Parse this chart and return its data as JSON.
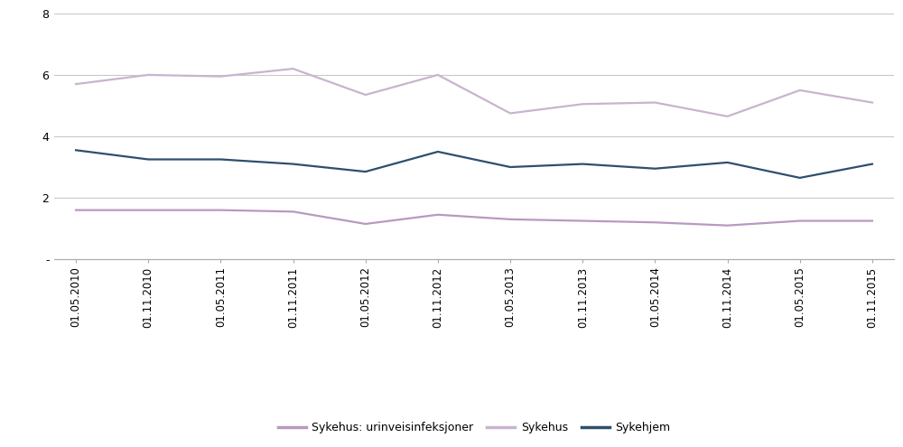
{
  "x_labels": [
    "01.05.2010",
    "01.11.2010",
    "01.05.2011",
    "01.11.2011",
    "01.05.2012",
    "01.11.2012",
    "01.05.2013",
    "01.11.2013",
    "01.05.2014",
    "01.11.2014",
    "01.05.2015",
    "01.11.2015"
  ],
  "sykehus": [
    5.7,
    6.0,
    5.95,
    6.2,
    5.35,
    6.0,
    4.75,
    5.05,
    5.1,
    4.65,
    5.5,
    5.1
  ],
  "sykehjem": [
    3.55,
    3.25,
    3.25,
    3.1,
    2.85,
    3.5,
    3.0,
    3.1,
    2.95,
    3.15,
    2.65,
    3.1
  ],
  "urin": [
    1.6,
    1.6,
    1.6,
    1.55,
    1.15,
    1.45,
    1.3,
    1.25,
    1.2,
    1.1,
    1.25,
    1.25
  ],
  "sykehus_color": "#c8b4cf",
  "sykehjem_color": "#2e4f6e",
  "urin_color": "#b899bf",
  "ylim": [
    0,
    8
  ],
  "yticks": [
    0,
    2,
    4,
    6,
    8
  ],
  "ytick_labels": [
    "-",
    "2",
    "4",
    "6",
    "8"
  ],
  "legend_labels": [
    "Sykehus: urinveisinfeksjoner",
    "Sykehus",
    "Sykehjem"
  ],
  "background_color": "#ffffff",
  "grid_color": "#c8c8c8",
  "linewidth": 1.6
}
